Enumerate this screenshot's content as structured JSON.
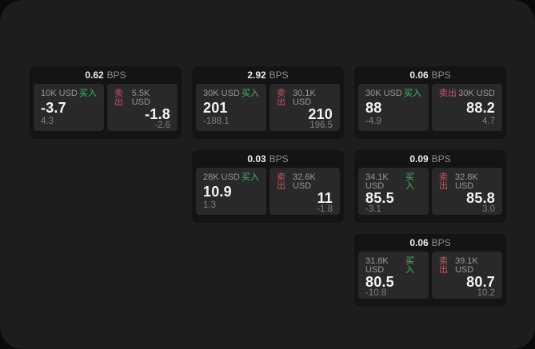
{
  "labels": {
    "bps_unit": "BPS",
    "buy": "买入",
    "sell": "卖出"
  },
  "colors": {
    "window_bg": "#1d1d1f",
    "card_bg": "#141415",
    "tile_bg": "#29292b",
    "buy_green": "#3fbf63",
    "sell_red": "#d44f5e",
    "value_white": "#f4f4f6",
    "muted_gray": "#8e8e93"
  },
  "cards": [
    {
      "bps": "0.62",
      "buy": {
        "amount": "10K USD",
        "price": "-3.7",
        "sub": "4.3"
      },
      "sell": {
        "amount": "5.5K USD",
        "price": "-1.8",
        "sub": "-2.6"
      }
    },
    {
      "bps": "2.92",
      "buy": {
        "amount": "30K USD",
        "price": "201",
        "sub": "-188.1"
      },
      "sell": {
        "amount": "30.1K USD",
        "price": "210",
        "sub": "196.5"
      }
    },
    {
      "bps": "0.06",
      "buy": {
        "amount": "30K USD",
        "price": "88",
        "sub": "-4.9"
      },
      "sell": {
        "amount": "30K USD",
        "price": "88.2",
        "sub": "4.7"
      }
    },
    {
      "bps": "0.03",
      "buy": {
        "amount": "28K USD",
        "price": "10.9",
        "sub": "1.3"
      },
      "sell": {
        "amount": "32.6K USD",
        "price": "11",
        "sub": "-1.8"
      }
    },
    {
      "bps": "0.09",
      "buy": {
        "amount": "34.1K USD",
        "price": "85.5",
        "sub": "-3.1"
      },
      "sell": {
        "amount": "32.8K USD",
        "price": "85.8",
        "sub": "3.0"
      }
    },
    {
      "bps": "0.06",
      "buy": {
        "amount": "31.8K USD",
        "price": "80.5",
        "sub": "-10.8"
      },
      "sell": {
        "amount": "39.1K USD",
        "price": "80.7",
        "sub": "10.2"
      }
    }
  ]
}
